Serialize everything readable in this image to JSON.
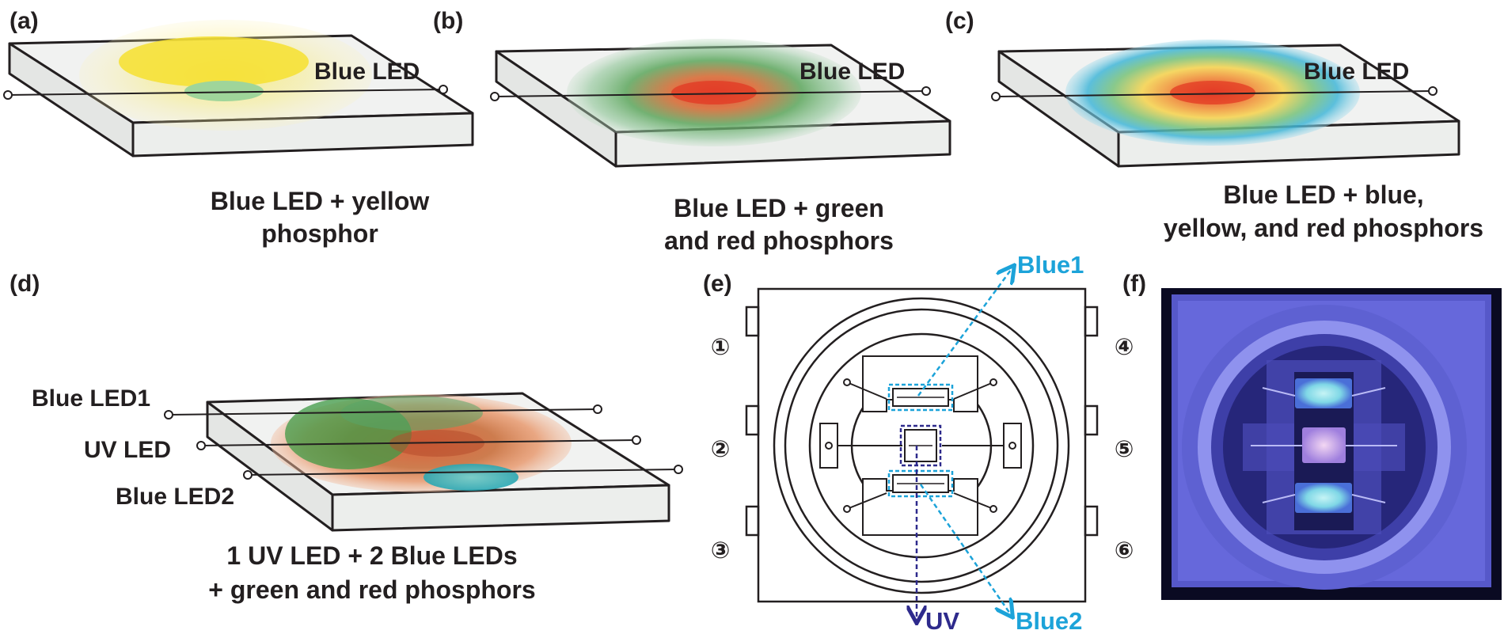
{
  "panels": {
    "a": {
      "tag": "(a)",
      "led_label": "Blue LED",
      "caption": [
        "Blue LED + yellow",
        "phosphor"
      ]
    },
    "b": {
      "tag": "(b)",
      "led_label": "Blue LED",
      "caption": [
        "Blue LED +  green",
        "and red phosphors"
      ]
    },
    "c": {
      "tag": "(c)",
      "led_label": "Blue LED",
      "caption": [
        "Blue LED +  blue,",
        "yellow, and red phosphors"
      ]
    },
    "d": {
      "tag": "(d)",
      "labels": [
        "Blue LED1",
        "UV LED",
        "Blue LED2"
      ],
      "caption": [
        "1 UV LED + 2 Blue LEDs",
        "+  green  and red phosphors"
      ]
    },
    "e": {
      "tag": "(e)",
      "pins": [
        "①",
        "②",
        "③",
        "④",
        "⑤",
        "⑥"
      ],
      "chip_labels": {
        "blue1": "Blue1",
        "uv": "UV",
        "blue2": "Blue2"
      }
    },
    "f": {
      "tag": "(f)"
    }
  },
  "colors": {
    "outline": "#231f20",
    "slab_face": "#eef0ef",
    "blue_label": "#1ca3d9",
    "uv_label": "#2e2a8c",
    "photo_bg": "#0a0a22",
    "photo_glow": "#7c7ff0"
  }
}
